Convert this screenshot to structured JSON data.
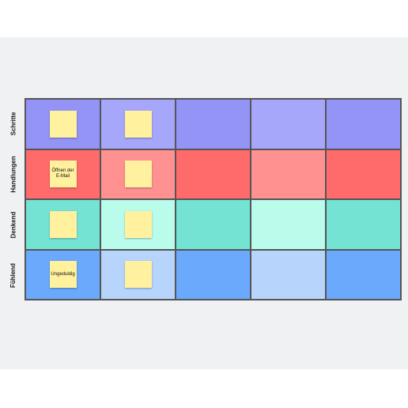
{
  "board": {
    "rows": [
      {
        "label": "Schritte",
        "notes": [
          ""
        ]
      },
      {
        "label": "Handlungen",
        "notes": [
          "Öffnen der E-Mail"
        ]
      },
      {
        "label": "Denkend",
        "notes": [
          ""
        ]
      },
      {
        "label": "Fühlend",
        "notes": [
          "Ungeduldig"
        ]
      }
    ]
  }
}
